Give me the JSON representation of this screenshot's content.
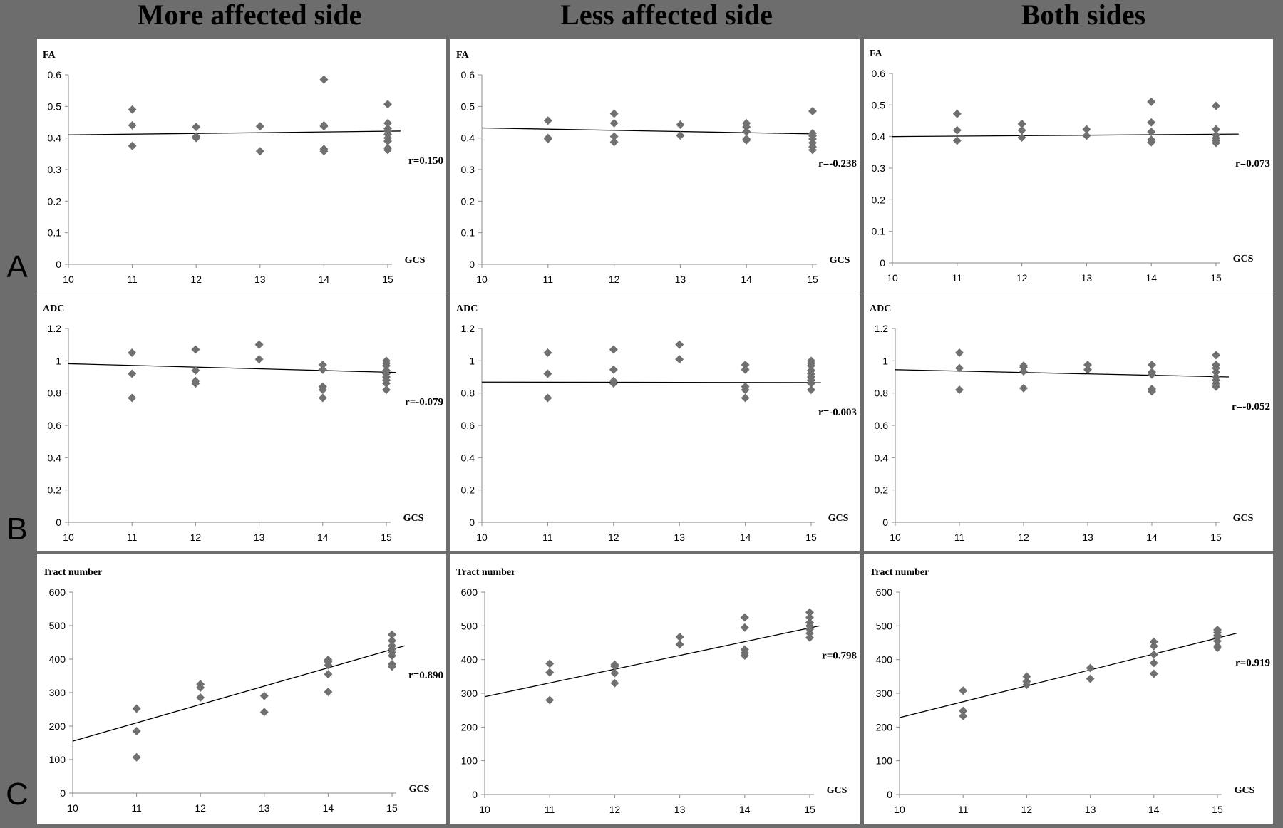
{
  "columns": [
    "More affected side",
    "Less affected side",
    "Both sides"
  ],
  "rows": [
    "A",
    "B",
    "C"
  ],
  "colors": {
    "marker": "#707070",
    "line": "#000000",
    "panel": "#ffffff",
    "background": "#6d6d6d"
  },
  "chart_data": [
    {
      "type": "scatter",
      "title": "",
      "ylabel": "FA",
      "xlabel": "GCS",
      "r": "r=0.150",
      "xlim": [
        10,
        15
      ],
      "xticks": [
        10,
        11,
        12,
        13,
        14,
        15
      ],
      "ylim": [
        0,
        0.6
      ],
      "yticks": [
        "0",
        "0.1",
        "0.2",
        "0.3",
        "0.4",
        "0.5",
        "0.6"
      ],
      "points": [
        [
          11,
          0.49
        ],
        [
          11,
          0.44
        ],
        [
          11,
          0.375
        ],
        [
          12,
          0.435
        ],
        [
          12,
          0.405
        ],
        [
          12,
          0.4
        ],
        [
          13,
          0.437
        ],
        [
          13,
          0.358
        ],
        [
          14,
          0.585
        ],
        [
          14,
          0.44
        ],
        [
          14,
          0.437
        ],
        [
          14,
          0.365
        ],
        [
          14,
          0.358
        ],
        [
          15,
          0.507
        ],
        [
          15,
          0.447
        ],
        [
          15,
          0.43
        ],
        [
          15,
          0.422
        ],
        [
          15,
          0.412
        ],
        [
          15,
          0.4
        ],
        [
          15,
          0.39
        ],
        [
          15,
          0.368
        ],
        [
          15,
          0.362
        ]
      ],
      "trendline": [
        [
          10,
          0.41
        ],
        [
          15.2,
          0.422
        ]
      ]
    },
    {
      "type": "scatter",
      "title": "",
      "ylabel": "FA",
      "xlabel": "GCS",
      "r": "r=-0.238",
      "xlim": [
        10,
        15
      ],
      "xticks": [
        10,
        11,
        12,
        13,
        14,
        15
      ],
      "ylim": [
        0,
        0.6
      ],
      "yticks": [
        "0",
        "0.1",
        "0.2",
        "0.3",
        "0.4",
        "0.5",
        "0.6"
      ],
      "points": [
        [
          11,
          0.455
        ],
        [
          11,
          0.4
        ],
        [
          11,
          0.397
        ],
        [
          12,
          0.477
        ],
        [
          12,
          0.447
        ],
        [
          12,
          0.405
        ],
        [
          12,
          0.387
        ],
        [
          13,
          0.442
        ],
        [
          13,
          0.408
        ],
        [
          14,
          0.447
        ],
        [
          14,
          0.435
        ],
        [
          14,
          0.42
        ],
        [
          14,
          0.397
        ],
        [
          14,
          0.393
        ],
        [
          15,
          0.485
        ],
        [
          15,
          0.415
        ],
        [
          15,
          0.407
        ],
        [
          15,
          0.397
        ],
        [
          15,
          0.385
        ],
        [
          15,
          0.372
        ],
        [
          15,
          0.362
        ]
      ],
      "trendline": [
        [
          10,
          0.432
        ],
        [
          15,
          0.413
        ]
      ]
    },
    {
      "type": "scatter",
      "title": "",
      "ylabel": "FA",
      "xlabel": "GCS",
      "r": "r=0.073",
      "xlim": [
        10,
        15
      ],
      "xticks": [
        10,
        11,
        12,
        13,
        14,
        15
      ],
      "ylim": [
        0,
        0.6
      ],
      "yticks": [
        "0",
        "0.1",
        "0.2",
        "0.3",
        "0.4",
        "0.5",
        "0.6"
      ],
      "points": [
        [
          11,
          0.472
        ],
        [
          11,
          0.42
        ],
        [
          11,
          0.387
        ],
        [
          12,
          0.44
        ],
        [
          12,
          0.42
        ],
        [
          12,
          0.397
        ],
        [
          13,
          0.423
        ],
        [
          13,
          0.403
        ],
        [
          14,
          0.51
        ],
        [
          14,
          0.445
        ],
        [
          14,
          0.415
        ],
        [
          14,
          0.39
        ],
        [
          14,
          0.382
        ],
        [
          15,
          0.497
        ],
        [
          15,
          0.423
        ],
        [
          15,
          0.405
        ],
        [
          15,
          0.395
        ],
        [
          15,
          0.387
        ],
        [
          15,
          0.38
        ]
      ],
      "trendline": [
        [
          10,
          0.4
        ],
        [
          15.35,
          0.408
        ]
      ]
    },
    {
      "type": "scatter",
      "title": "",
      "ylabel": "ADC",
      "xlabel": "GCS",
      "r": "r=-0.079",
      "xlim": [
        10,
        15
      ],
      "xticks": [
        10,
        11,
        12,
        13,
        14,
        15
      ],
      "ylim": [
        0,
        1.2
      ],
      "yticks": [
        "0",
        "0.2",
        "0.4",
        "0.6",
        "0.8",
        "1",
        "1.2"
      ],
      "points": [
        [
          11,
          1.05
        ],
        [
          11,
          0.92
        ],
        [
          11,
          0.77
        ],
        [
          12,
          1.07
        ],
        [
          12,
          0.94
        ],
        [
          12,
          0.875
        ],
        [
          12,
          0.86
        ],
        [
          13,
          1.1
        ],
        [
          13,
          1.01
        ],
        [
          14,
          0.975
        ],
        [
          14,
          0.945
        ],
        [
          14,
          0.84
        ],
        [
          14,
          0.82
        ],
        [
          14,
          0.77
        ],
        [
          15,
          1.0
        ],
        [
          15,
          0.985
        ],
        [
          15,
          0.97
        ],
        [
          15,
          0.94
        ],
        [
          15,
          0.92
        ],
        [
          15,
          0.9
        ],
        [
          15,
          0.88
        ],
        [
          15,
          0.86
        ],
        [
          15,
          0.82
        ]
      ],
      "trendline": [
        [
          10,
          0.982
        ],
        [
          15.15,
          0.928
        ]
      ]
    },
    {
      "type": "scatter",
      "title": "",
      "ylabel": "ADC",
      "xlabel": "GCS",
      "r": "r=-0.003",
      "xlim": [
        10,
        15
      ],
      "xticks": [
        10,
        11,
        12,
        13,
        14,
        15
      ],
      "ylim": [
        0,
        1.2
      ],
      "yticks": [
        "0",
        "0.2",
        "0.4",
        "0.6",
        "0.8",
        "1",
        "1.2"
      ],
      "points": [
        [
          11,
          1.05
        ],
        [
          11,
          0.92
        ],
        [
          11,
          0.77
        ],
        [
          12,
          1.07
        ],
        [
          12,
          0.945
        ],
        [
          12,
          0.875
        ],
        [
          12,
          0.86
        ],
        [
          13,
          1.1
        ],
        [
          13,
          1.01
        ],
        [
          14,
          0.975
        ],
        [
          14,
          0.945
        ],
        [
          14,
          0.84
        ],
        [
          14,
          0.82
        ],
        [
          14,
          0.77
        ],
        [
          15,
          1.0
        ],
        [
          15,
          0.985
        ],
        [
          15,
          0.97
        ],
        [
          15,
          0.94
        ],
        [
          15,
          0.92
        ],
        [
          15,
          0.9
        ],
        [
          15,
          0.88
        ],
        [
          15,
          0.86
        ],
        [
          15,
          0.82
        ]
      ],
      "trendline": [
        [
          10,
          0.868
        ],
        [
          15.15,
          0.865
        ]
      ]
    },
    {
      "type": "scatter",
      "title": "",
      "ylabel": "ADC",
      "xlabel": "GCS",
      "r": "r=-0.052",
      "xlim": [
        10,
        15
      ],
      "xticks": [
        10,
        11,
        12,
        13,
        14,
        15
      ],
      "ylim": [
        0,
        1.2
      ],
      "yticks": [
        "0",
        "0.2",
        "0.4",
        "0.6",
        "0.8",
        "1",
        "1.2"
      ],
      "points": [
        [
          11,
          1.05
        ],
        [
          11,
          0.955
        ],
        [
          11,
          0.82
        ],
        [
          12,
          0.97
        ],
        [
          12,
          0.96
        ],
        [
          12,
          0.935
        ],
        [
          12,
          0.83
        ],
        [
          13,
          0.975
        ],
        [
          13,
          0.945
        ],
        [
          14,
          0.975
        ],
        [
          14,
          0.93
        ],
        [
          14,
          0.915
        ],
        [
          14,
          0.825
        ],
        [
          14,
          0.81
        ],
        [
          15,
          1.035
        ],
        [
          15,
          0.975
        ],
        [
          15,
          0.955
        ],
        [
          15,
          0.93
        ],
        [
          15,
          0.9
        ],
        [
          15,
          0.88
        ],
        [
          15,
          0.86
        ],
        [
          15,
          0.84
        ]
      ],
      "trendline": [
        [
          10,
          0.945
        ],
        [
          15.2,
          0.9
        ]
      ]
    },
    {
      "type": "scatter",
      "title": "",
      "ylabel": "Tract number",
      "xlabel": "GCS",
      "r": "r=0.890",
      "xlim": [
        10,
        15
      ],
      "xticks": [
        10,
        11,
        12,
        13,
        14,
        15
      ],
      "ylim": [
        0,
        600
      ],
      "yticks": [
        "0",
        "100",
        "200",
        "300",
        "400",
        "500",
        "600"
      ],
      "points": [
        [
          11,
          252
        ],
        [
          11,
          185
        ],
        [
          11,
          107
        ],
        [
          12,
          325
        ],
        [
          12,
          315
        ],
        [
          12,
          285
        ],
        [
          13,
          290
        ],
        [
          13,
          242
        ],
        [
          14,
          398
        ],
        [
          14,
          392
        ],
        [
          14,
          382
        ],
        [
          14,
          355
        ],
        [
          14,
          302
        ],
        [
          15,
          473
        ],
        [
          15,
          455
        ],
        [
          15,
          440
        ],
        [
          15,
          430
        ],
        [
          15,
          420
        ],
        [
          15,
          410
        ],
        [
          15,
          385
        ],
        [
          15,
          378
        ]
      ],
      "trendline": [
        [
          10,
          155
        ],
        [
          15.2,
          440
        ]
      ]
    },
    {
      "type": "scatter",
      "title": "",
      "ylabel": "Tract number",
      "xlabel": "GCS",
      "r": "r=0.798",
      "xlim": [
        10,
        15
      ],
      "xticks": [
        10,
        11,
        12,
        13,
        14,
        15
      ],
      "ylim": [
        0,
        600
      ],
      "yticks": [
        "0",
        "100",
        "200",
        "300",
        "400",
        "500",
        "600"
      ],
      "points": [
        [
          11,
          388
        ],
        [
          11,
          362
        ],
        [
          11,
          280
        ],
        [
          12,
          385
        ],
        [
          12,
          380
        ],
        [
          12,
          360
        ],
        [
          12,
          330
        ],
        [
          13,
          467
        ],
        [
          13,
          445
        ],
        [
          14,
          525
        ],
        [
          14,
          495
        ],
        [
          14,
          430
        ],
        [
          14,
          420
        ],
        [
          14,
          412
        ],
        [
          15,
          540
        ],
        [
          15,
          525
        ],
        [
          15,
          510
        ],
        [
          15,
          500
        ],
        [
          15,
          490
        ],
        [
          15,
          478
        ],
        [
          15,
          465
        ]
      ],
      "trendline": [
        [
          10,
          290
        ],
        [
          15.15,
          500
        ]
      ]
    },
    {
      "type": "scatter",
      "title": "",
      "ylabel": "Tract number",
      "xlabel": "GCS",
      "r": "r=0.919",
      "xlim": [
        10,
        15
      ],
      "xticks": [
        10,
        11,
        12,
        13,
        14,
        15
      ],
      "ylim": [
        0,
        600
      ],
      "yticks": [
        "0",
        "100",
        "200",
        "300",
        "400",
        "500",
        "600"
      ],
      "points": [
        [
          11,
          308
        ],
        [
          11,
          248
        ],
        [
          11,
          233
        ],
        [
          12,
          350
        ],
        [
          12,
          335
        ],
        [
          12,
          325
        ],
        [
          13,
          375
        ],
        [
          13,
          343
        ],
        [
          14,
          453
        ],
        [
          14,
          440
        ],
        [
          14,
          415
        ],
        [
          14,
          390
        ],
        [
          14,
          358
        ],
        [
          15,
          488
        ],
        [
          15,
          480
        ],
        [
          15,
          472
        ],
        [
          15,
          465
        ],
        [
          15,
          455
        ],
        [
          15,
          440
        ],
        [
          15,
          435
        ]
      ],
      "trendline": [
        [
          10,
          228
        ],
        [
          15.3,
          478
        ]
      ]
    }
  ]
}
